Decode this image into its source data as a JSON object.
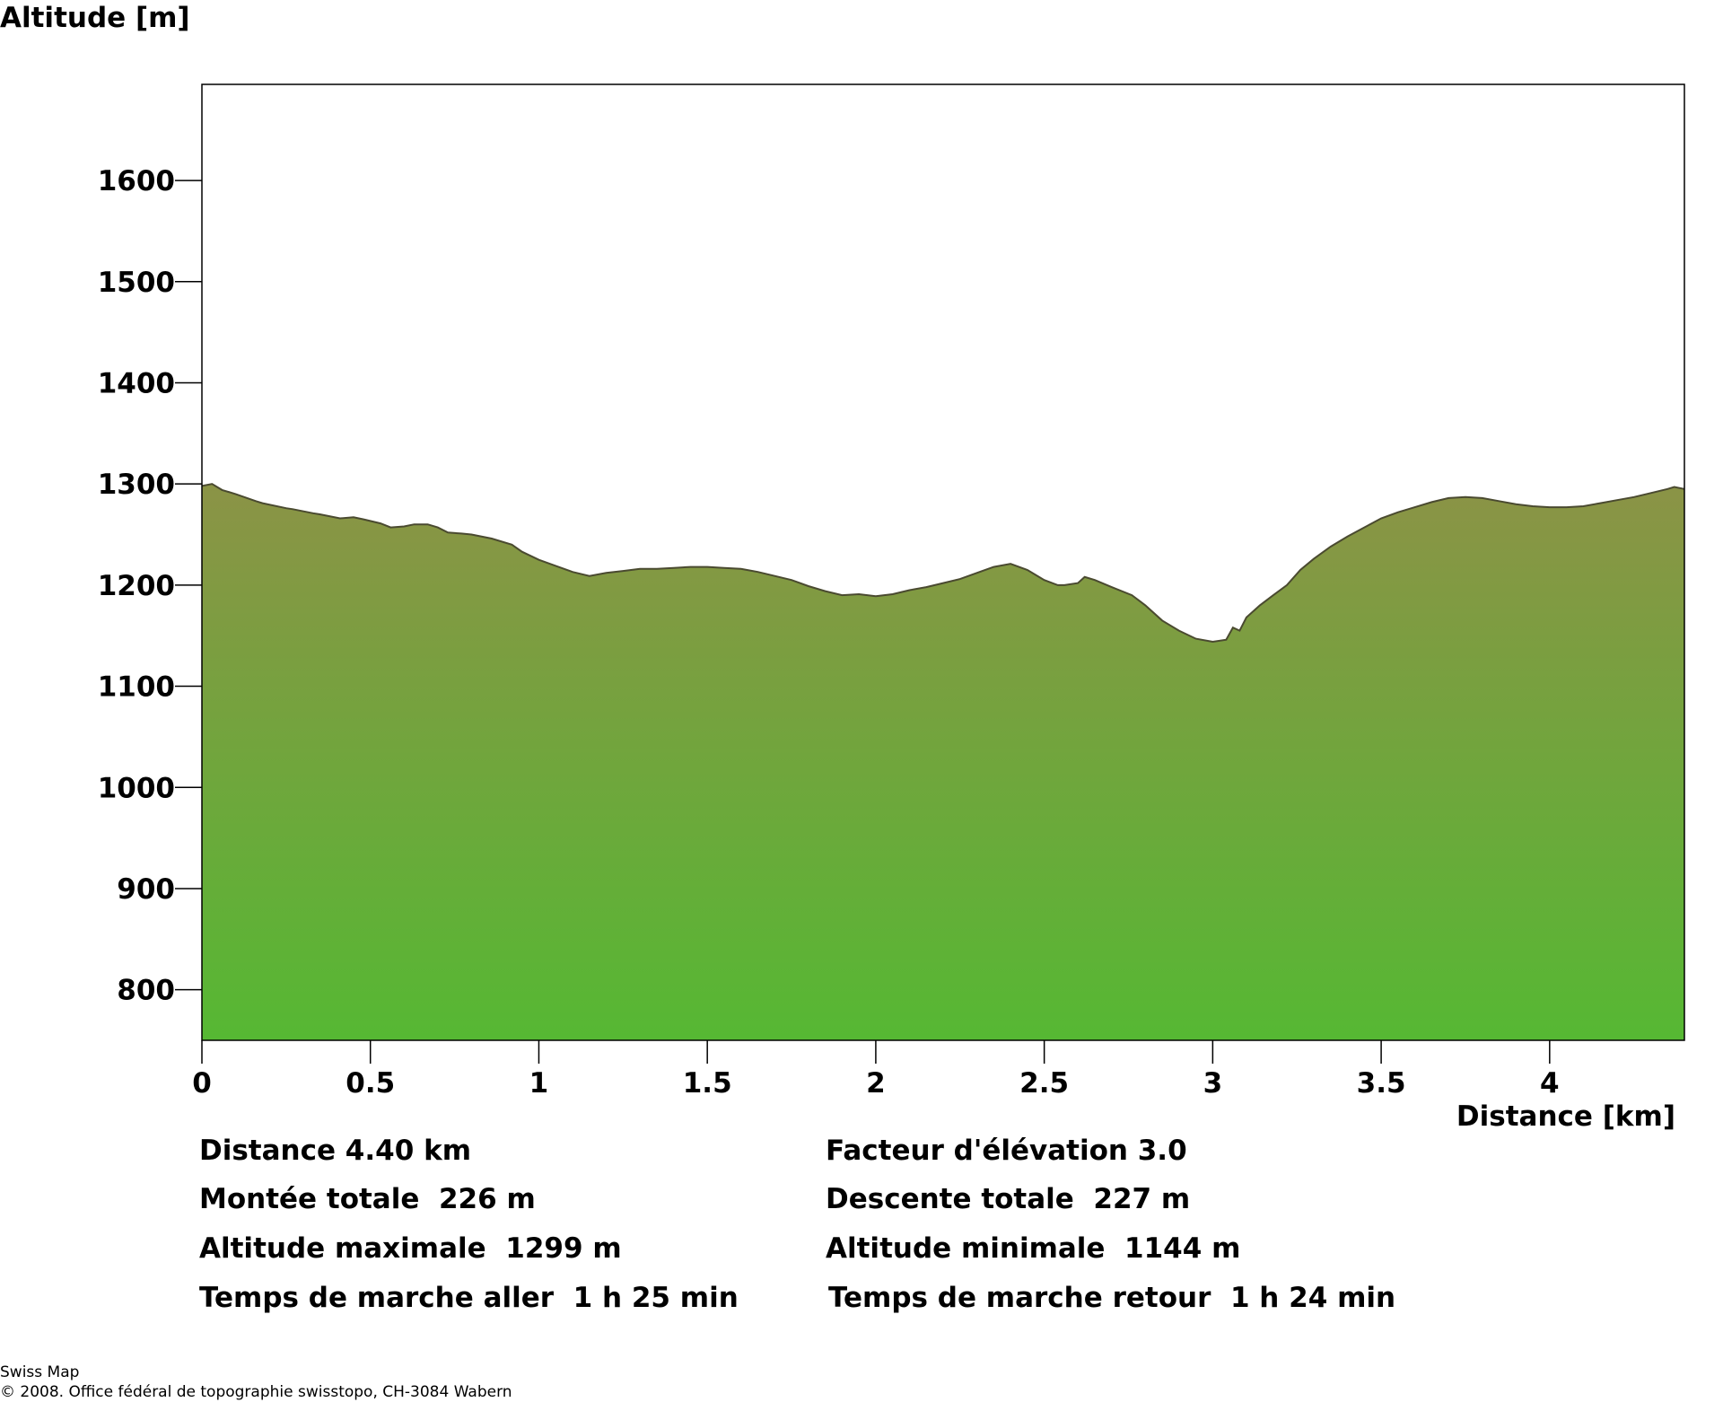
{
  "chart_data": {
    "type": "area",
    "title": "",
    "ylabel": "Altitude [m]",
    "xlabel": "Distance [km]",
    "xlim": [
      0,
      4.4
    ],
    "ylim": [
      750,
      1695
    ],
    "yticks": [
      800,
      900,
      1000,
      1100,
      1200,
      1300,
      1400,
      1500,
      1600
    ],
    "ytick_labels": [
      "800",
      "900",
      "1000",
      "1100",
      "1200",
      "1300",
      "1400",
      "1500",
      "1600"
    ],
    "xticks": [
      0,
      0.5,
      1,
      1.5,
      2,
      2.5,
      3,
      3.5,
      4
    ],
    "xtick_labels": [
      "0",
      "0.5",
      "1",
      "1.5",
      "2",
      "2.5",
      "3",
      "3.5",
      "4"
    ],
    "grid": false,
    "colors": {
      "fill_top": "#8b9346",
      "fill_bottom": "#56b833",
      "outline": "#4a4a30"
    },
    "series": [
      {
        "x": [
          0,
          0.03,
          0.06,
          0.1,
          0.16,
          0.18,
          0.25,
          0.27,
          0.33,
          0.35,
          0.41,
          0.45,
          0.48,
          0.53,
          0.56,
          0.6,
          0.63,
          0.67,
          0.7,
          0.73,
          0.77,
          0.8,
          0.86,
          0.92,
          0.95,
          1.0,
          1.05,
          1.1,
          1.15,
          1.2,
          1.25,
          1.3,
          1.35,
          1.4,
          1.45,
          1.5,
          1.55,
          1.6,
          1.65,
          1.7,
          1.75,
          1.8,
          1.85,
          1.9,
          1.95,
          2.0,
          2.05,
          2.1,
          2.15,
          2.2,
          2.25,
          2.3,
          2.35,
          2.4,
          2.45,
          2.5,
          2.54,
          2.56,
          2.6,
          2.62,
          2.65,
          2.7,
          2.76,
          2.8,
          2.85,
          2.9,
          2.95,
          3.0,
          3.04,
          3.06,
          3.08,
          3.1,
          3.14,
          3.18,
          3.22,
          3.26,
          3.3,
          3.35,
          3.4,
          3.45,
          3.5,
          3.55,
          3.6,
          3.65,
          3.7,
          3.75,
          3.8,
          3.85,
          3.9,
          3.95,
          4.0,
          4.05,
          4.1,
          4.15,
          4.2,
          4.25,
          4.3,
          4.35,
          4.37,
          4.4
        ],
        "y": [
          1298,
          1300,
          1294,
          1290,
          1283,
          1281,
          1276,
          1275,
          1271,
          1270,
          1266,
          1267,
          1265,
          1261,
          1257,
          1258,
          1260,
          1260,
          1257,
          1252,
          1251,
          1250,
          1246,
          1240,
          1233,
          1225,
          1219,
          1213,
          1209,
          1212,
          1214,
          1216,
          1216,
          1217,
          1218,
          1218,
          1217,
          1216,
          1213,
          1209,
          1205,
          1199,
          1194,
          1190,
          1191,
          1189,
          1191,
          1195,
          1198,
          1202,
          1206,
          1212,
          1218,
          1221,
          1215,
          1205,
          1200,
          1200,
          1202,
          1208,
          1205,
          1198,
          1190,
          1180,
          1165,
          1155,
          1147,
          1144,
          1146,
          1158,
          1155,
          1168,
          1180,
          1190,
          1200,
          1215,
          1226,
          1238,
          1248,
          1257,
          1266,
          1272,
          1277,
          1282,
          1286,
          1287,
          1286,
          1283,
          1280,
          1278,
          1277,
          1277,
          1278,
          1281,
          1284,
          1287,
          1291,
          1295,
          1297,
          1295
        ]
      }
    ]
  },
  "stats": {
    "distance": "Distance 4.40 km",
    "elevation_factor": "Facteur d'élévation 3.0",
    "ascent": "Montée totale  226 m",
    "descent": "Descente totale  227 m",
    "alt_max": "Altitude maximale  1299 m",
    "alt_min": "Altitude minimale  1144 m",
    "time_out": "Temps de marche aller  1 h 25 min",
    "time_back": "Temps de marche retour  1 h 24 min"
  },
  "credit": {
    "line1": "Swiss Map",
    "line2": "© 2008. Office fédéral de topographie swisstopo, CH-3084 Wabern"
  }
}
